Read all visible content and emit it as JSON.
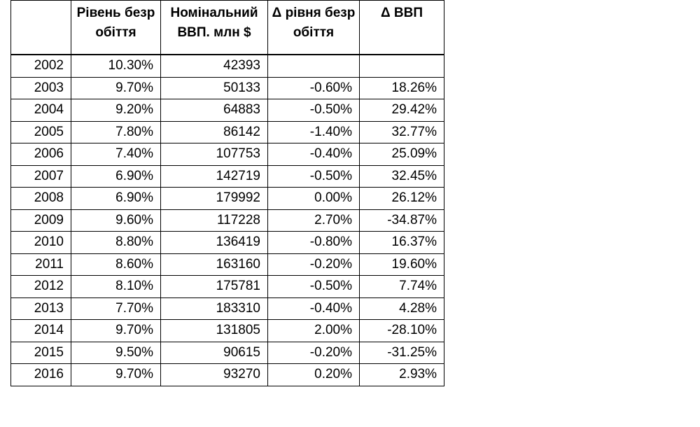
{
  "table": {
    "headers": [
      "",
      "Рівень безробіття",
      "Номінальний ВВП. млн $",
      "Δ рівня безробіття",
      "Δ ВВП"
    ],
    "rows": [
      [
        "2002",
        "10.30%",
        "42393",
        "",
        ""
      ],
      [
        "2003",
        "9.70%",
        "50133",
        "-0.60%",
        "18.26%"
      ],
      [
        "2004",
        "9.20%",
        "64883",
        "-0.50%",
        "29.42%"
      ],
      [
        "2005",
        "7.80%",
        "86142",
        "-1.40%",
        "32.77%"
      ],
      [
        "2006",
        "7.40%",
        "107753",
        "-0.40%",
        "25.09%"
      ],
      [
        "2007",
        "6.90%",
        "142719",
        "-0.50%",
        "32.45%"
      ],
      [
        "2008",
        "6.90%",
        "179992",
        "0.00%",
        "26.12%"
      ],
      [
        "2009",
        "9.60%",
        "117228",
        "2.70%",
        "-34.87%"
      ],
      [
        "2010",
        "8.80%",
        "136419",
        "-0.80%",
        "16.37%"
      ],
      [
        "2011",
        "8.60%",
        "163160",
        "-0.20%",
        "19.60%"
      ],
      [
        "2012",
        "8.10%",
        "175781",
        "-0.50%",
        "7.74%"
      ],
      [
        "2013",
        "7.70%",
        "183310",
        "-0.40%",
        "4.28%"
      ],
      [
        "2014",
        "9.70%",
        "131805",
        "2.00%",
        "-28.10%"
      ],
      [
        "2015",
        "9.50%",
        "90615",
        "-0.20%",
        "-31.25%"
      ],
      [
        "2016",
        "9.70%",
        "93270",
        "0.20%",
        "2.93%"
      ]
    ]
  }
}
